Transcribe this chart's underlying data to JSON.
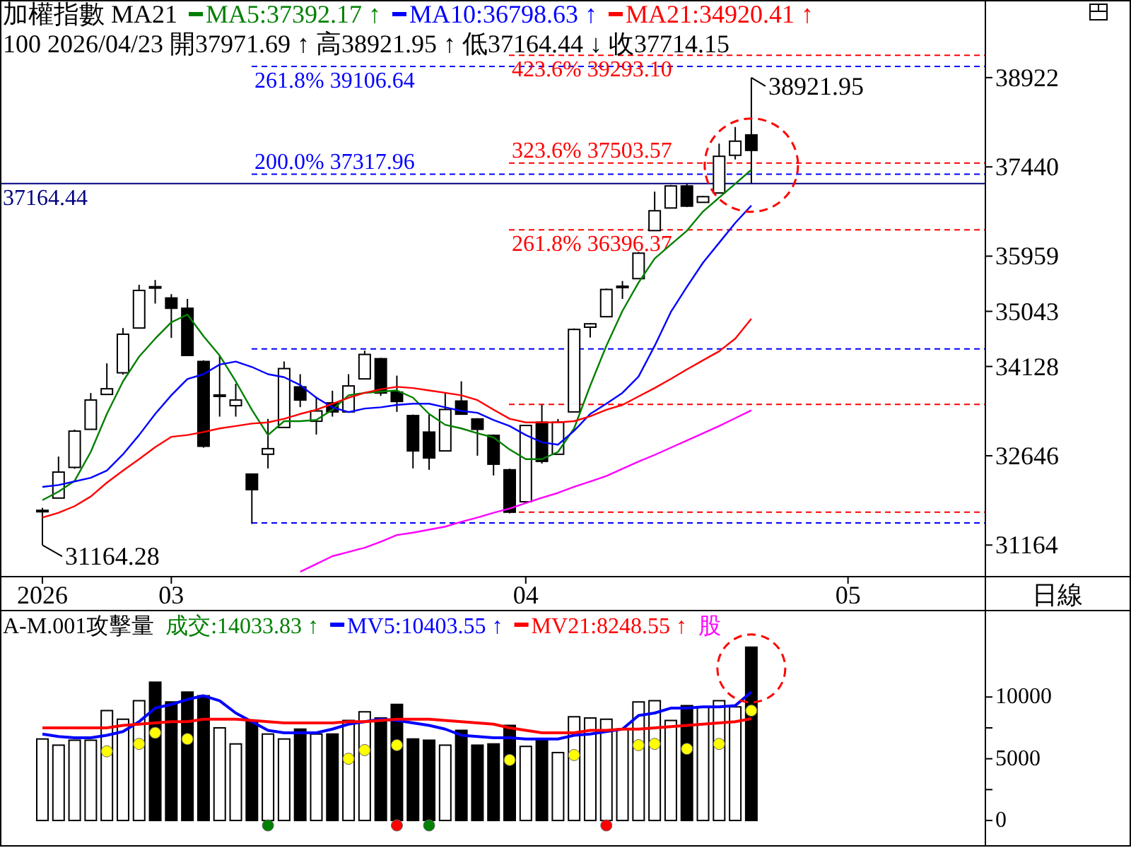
{
  "chart_data": [
    {
      "type": "candlestick",
      "title": "加權指數 MA21",
      "subtitle": "100 2026/04/23 開37971.69 ↑ 高38921.95 ↑ 低37164.44 ↓ 收37714.15",
      "legend": "top left",
      "categories": [
        "2026",
        null,
        null,
        null,
        null,
        null,
        null,
        null,
        "03",
        null,
        null,
        null,
        null,
        null,
        null,
        null,
        null,
        null,
        null,
        null,
        null,
        null,
        null,
        null,
        null,
        null,
        null,
        null,
        null,
        null,
        "04",
        null,
        null,
        null,
        null,
        null,
        null,
        null,
        null,
        null,
        null,
        null,
        null,
        null,
        null,
        null,
        null,
        null,
        null,
        null,
        "05",
        null,
        null,
        null,
        null,
        null,
        null,
        null,
        null
      ],
      "ohlc": [
        [
          31720,
          31780,
          31164.28,
          31740
        ],
        [
          31944,
          32633,
          31944,
          32375
        ],
        [
          32453,
          33080,
          32430,
          33055
        ],
        [
          33085,
          33688,
          33085,
          33571
        ],
        [
          33664,
          34180,
          33664,
          33758
        ],
        [
          34023,
          34766,
          33993,
          34663
        ],
        [
          34766,
          35483,
          34766,
          35390
        ],
        [
          35452,
          35563,
          35172,
          35440
        ],
        [
          35265,
          35329,
          34602,
          35094
        ],
        [
          35094,
          35249,
          34311,
          34311
        ],
        [
          34211,
          34230,
          32780,
          32804
        ],
        [
          33640,
          34311,
          33296,
          33655
        ],
        [
          33477,
          33842,
          33296,
          33571
        ],
        [
          32342,
          32342,
          31515,
          32084
        ],
        [
          32671,
          33257,
          32436,
          32764
        ],
        [
          33116,
          34211,
          33116,
          34093
        ],
        [
          33789,
          34000,
          33453,
          33571
        ],
        [
          33219,
          33625,
          32999,
          33390
        ],
        [
          33524,
          33725,
          33296,
          33374
        ],
        [
          33374,
          34000,
          33374,
          33805
        ],
        [
          33922,
          34391,
          33922,
          34328
        ],
        [
          34257,
          34270,
          33640,
          33688
        ],
        [
          33702,
          33976,
          33374,
          33547
        ],
        [
          33313,
          33330,
          32436,
          32727
        ],
        [
          33039,
          33336,
          32413,
          32610
        ],
        [
          32727,
          33702,
          32727,
          33414
        ],
        [
          33554,
          33882,
          33330,
          33336
        ],
        [
          33257,
          33270,
          32647,
          33085
        ],
        [
          32985,
          33000,
          32319,
          32506
        ],
        [
          32413,
          32430,
          31690,
          31710
        ],
        [
          31883,
          33160,
          31870,
          33149
        ],
        [
          33203,
          33491,
          32516,
          32553
        ],
        [
          32671,
          33257,
          32671,
          33203
        ],
        [
          33374,
          34760,
          33374,
          34743
        ],
        [
          34780,
          34850,
          34609,
          34836
        ],
        [
          34954,
          35420,
          34954,
          35406
        ],
        [
          35440,
          35547,
          35249,
          35460
        ],
        [
          35586,
          36030,
          35586,
          36008
        ],
        [
          36383,
          37030,
          36383,
          36712
        ],
        [
          36758,
          37140,
          36758,
          37124
        ],
        [
          37124,
          37164,
          36773,
          36789
        ],
        [
          36852,
          36960,
          36852,
          36946
        ],
        [
          37007,
          37827,
          37007,
          37616
        ],
        [
          37633,
          38102,
          37563,
          37867
        ],
        [
          37971.69,
          38921.95,
          37164.44,
          37714.15
        ],
        null,
        null,
        null,
        null,
        null,
        null,
        null,
        null,
        null,
        null,
        null,
        null,
        null,
        null
      ],
      "series": [
        {
          "name": "MA5:37392.17 ↑",
          "type": "line",
          "color": "#008000",
          "values": [
            31910,
            32050,
            32230,
            32710,
            33340,
            33880,
            34290,
            34590,
            34860,
            34990,
            34630,
            34310,
            33880,
            33410,
            32990,
            33220,
            33220,
            33240,
            33410,
            33650,
            33690,
            33710,
            33730,
            33610,
            33340,
            33160,
            33100,
            33020,
            32950,
            32750,
            32590,
            32590,
            32710,
            33100,
            33810,
            34470,
            35050,
            35520,
            35920,
            36150,
            36380,
            36700,
            36930,
            37160,
            37392.17,
            null,
            null,
            null,
            null,
            null,
            null,
            null,
            null,
            null,
            null,
            null,
            null,
            null,
            null
          ]
        },
        {
          "name": "MA10:36798.63 ↑",
          "type": "line",
          "color": "#0000ff",
          "values": [
            32130,
            32160,
            32220,
            32280,
            32400,
            32670,
            32990,
            33340,
            33650,
            33920,
            34000,
            34160,
            34210,
            34120,
            34000,
            33950,
            33820,
            33610,
            33450,
            33370,
            33430,
            33450,
            33490,
            33510,
            33510,
            33450,
            33390,
            33360,
            33240,
            33140,
            32990,
            32870,
            32830,
            33060,
            33340,
            33510,
            33690,
            33960,
            34470,
            35030,
            35450,
            35850,
            36180,
            36510,
            36798.63,
            null,
            null,
            null,
            null,
            null,
            null,
            null,
            null,
            null,
            null,
            null,
            null,
            null,
            null
          ]
        },
        {
          "name": "MA21:34920.41 ↑",
          "type": "line",
          "color": "#ff0000",
          "values": [
            31620,
            31700,
            31810,
            31970,
            32200,
            32400,
            32590,
            32790,
            32960,
            32990,
            33040,
            33100,
            33140,
            33180,
            33200,
            33260,
            33340,
            33410,
            33510,
            33610,
            33690,
            33750,
            33790,
            33770,
            33730,
            33690,
            33650,
            33570,
            33410,
            33260,
            33200,
            33200,
            33200,
            33220,
            33300,
            33410,
            33490,
            33630,
            33770,
            33920,
            34080,
            34230,
            34380,
            34590,
            34920.41,
            null,
            null,
            null,
            null,
            null,
            null,
            null,
            null,
            null,
            null,
            null,
            null,
            null,
            null
          ]
        },
        {
          "type": "line",
          "color": "#ff00ff",
          "values": [
            null,
            null,
            null,
            null,
            null,
            null,
            null,
            null,
            null,
            null,
            null,
            null,
            null,
            null,
            null,
            null,
            30720,
            30850,
            30980,
            31050,
            31120,
            31220,
            31330,
            31370,
            31420,
            31470,
            31550,
            31620,
            31700,
            31770,
            31860,
            31950,
            32030,
            32130,
            32220,
            32310,
            32430,
            32550,
            32660,
            32780,
            32900,
            33020,
            33140,
            33270,
            33400,
            null,
            null,
            null,
            null,
            null,
            null,
            null,
            null,
            null,
            null,
            null,
            null,
            null,
            null
          ]
        }
      ],
      "ylim": [
        30640,
        40210
      ],
      "yticks": [
        31164,
        32646,
        34128,
        35043,
        35959,
        37440,
        38922
      ],
      "ref_lines": [
        {
          "axis": "y",
          "value": 37164.44,
          "label": "37164.44",
          "color": "#000080",
          "line_style": "solid"
        },
        {
          "axis": "y",
          "value": 39106.64,
          "label": "261.8% 39106.64",
          "color": "#0000ff",
          "line_style": "dashed"
        },
        {
          "axis": "y",
          "value": 37317.96,
          "label": "200.0% 37317.96",
          "color": "#0000ff",
          "line_style": "dashed"
        },
        {
          "axis": "y",
          "value": 34420,
          "color": "#0000ff",
          "line_style": "dashed"
        },
        {
          "axis": "y",
          "value": 31530,
          "color": "#0000ff",
          "line_style": "dashed"
        },
        {
          "axis": "y",
          "value": 39293.1,
          "label": "423.6% 39293.10",
          "color": "#ff0000",
          "line_style": "dashed"
        },
        {
          "axis": "y",
          "value": 37503.57,
          "label": "323.6% 37503.57",
          "color": "#ff0000",
          "line_style": "dashed"
        },
        {
          "axis": "y",
          "value": 36396.37,
          "label": "261.8% 36396.37",
          "color": "#ff0000",
          "line_style": "dashed"
        },
        {
          "axis": "y",
          "value": 33500,
          "color": "#ff0000",
          "line_style": "dashed"
        },
        {
          "axis": "y",
          "value": 31710,
          "color": "#ff0000",
          "line_style": "dashed"
        }
      ],
      "annotations": [
        "38921.95",
        "31164.28",
        "日線"
      ]
    },
    {
      "type": "bar",
      "title": "A-M.001攻擊量",
      "legend": "top left",
      "categories": [
        null,
        null,
        null,
        null,
        null,
        null,
        null,
        null,
        null,
        null,
        null,
        null,
        null,
        null,
        null,
        null,
        null,
        null,
        null,
        null,
        null,
        null,
        null,
        null,
        null,
        null,
        null,
        null,
        null,
        null,
        null,
        null,
        null,
        null,
        null,
        null,
        null,
        null,
        null,
        null,
        null,
        null,
        null,
        null,
        null,
        null,
        null,
        null,
        null,
        null,
        null,
        null,
        null,
        null,
        null,
        null,
        null,
        null,
        null
      ],
      "series": [
        {
          "type": "bar",
          "colors": [
            "#ffffff",
            "#ffffff",
            "#ffffff",
            "#ffffff",
            "#ffffff",
            "#ffffff",
            "#ffffff",
            "#000000",
            "#000000",
            "#000000",
            "#000000",
            "#ffffff",
            "#ffffff",
            "#000000",
            "#ffffff",
            "#ffffff",
            "#000000",
            "#ffffff",
            "#000000",
            "#ffffff",
            "#ffffff",
            "#000000",
            "#000000",
            "#000000",
            "#000000",
            "#ffffff",
            "#000000",
            "#000000",
            "#000000",
            "#000000",
            "#ffffff",
            "#000000",
            "#ffffff",
            "#ffffff",
            "#ffffff",
            "#ffffff",
            "#ffffff",
            "#ffffff",
            "#ffffff",
            "#ffffff",
            "#000000",
            "#ffffff",
            "#ffffff",
            "#ffffff",
            "#000000",
            null,
            null,
            null,
            null,
            null,
            null,
            null,
            null,
            null,
            null,
            null,
            null,
            null,
            null
          ],
          "values": [
            6600,
            6100,
            6500,
            6500,
            8900,
            8200,
            9700,
            11200,
            9600,
            10400,
            10100,
            7500,
            6200,
            8100,
            7000,
            6600,
            7400,
            7000,
            7000,
            8100,
            8800,
            8300,
            9400,
            6600,
            6500,
            6100,
            7300,
            6100,
            6200,
            7700,
            6000,
            6500,
            5500,
            8400,
            8300,
            8200,
            7400,
            9600,
            9700,
            8100,
            9300,
            9200,
            9700,
            9200,
            14033.83,
            null,
            null,
            null,
            null,
            null,
            null,
            null,
            null,
            null,
            null,
            null,
            null,
            null,
            null
          ]
        },
        {
          "name": "MV5:10403.55 ↑",
          "type": "line",
          "color": "#0000ff",
          "values": [
            7000,
            6800,
            6700,
            6700,
            6900,
            7200,
            8000,
            9100,
            9400,
            9800,
            10100,
            9700,
            8700,
            8000,
            7300,
            7100,
            7100,
            7100,
            7400,
            7800,
            8000,
            8200,
            8100,
            7900,
            7700,
            7400,
            6900,
            6800,
            6700,
            6700,
            6600,
            6600,
            6600,
            6900,
            7000,
            7200,
            7400,
            8500,
            8700,
            9100,
            9100,
            9200,
            9200,
            9300,
            10403.55,
            null,
            null,
            null,
            null,
            null,
            null,
            null,
            null,
            null,
            null,
            null,
            null,
            null,
            null
          ]
        },
        {
          "name": "MV21:8248.55 ↑",
          "type": "line",
          "color": "#ff0000",
          "values": [
            7500,
            7500,
            7500,
            7500,
            7500,
            7700,
            7800,
            7900,
            8000,
            8000,
            8200,
            8200,
            8200,
            8100,
            8000,
            7900,
            7900,
            7900,
            7900,
            8000,
            8000,
            8100,
            8200,
            8200,
            8200,
            8100,
            8000,
            7900,
            7800,
            7500,
            7300,
            7100,
            7100,
            7100,
            7300,
            7300,
            7400,
            7400,
            7500,
            7600,
            7700,
            7800,
            7900,
            8000,
            8248.55,
            null,
            null,
            null,
            null,
            null,
            null,
            null,
            null,
            null,
            null,
            null,
            null,
            null,
            null
          ]
        },
        {
          "type": "scatter",
          "color": "#ffff00",
          "values": [
            null,
            null,
            null,
            null,
            5600,
            null,
            6200,
            7100,
            null,
            6600,
            null,
            null,
            null,
            null,
            null,
            null,
            null,
            null,
            null,
            5000,
            5700,
            null,
            6100,
            null,
            null,
            null,
            null,
            null,
            null,
            4900,
            null,
            null,
            null,
            5300,
            null,
            null,
            null,
            6100,
            6200,
            null,
            5800,
            null,
            6200,
            null,
            8900,
            null,
            null,
            null,
            null,
            null,
            null,
            null,
            null,
            null,
            null,
            null,
            null,
            null,
            null
          ]
        },
        {
          "type": "scatter",
          "colors": [
            null,
            null,
            null,
            null,
            null,
            null,
            null,
            null,
            null,
            null,
            null,
            null,
            null,
            null,
            "#008000",
            null,
            null,
            null,
            null,
            null,
            null,
            null,
            "#ff0000",
            null,
            "#008000",
            null,
            null,
            null,
            null,
            null,
            null,
            null,
            null,
            null,
            null,
            "#ff0000",
            null,
            null,
            null,
            null,
            null,
            null,
            null,
            null,
            null,
            null,
            null,
            null,
            null,
            null,
            null,
            null,
            null,
            null,
            null,
            null,
            null,
            null,
            null
          ],
          "values": [
            null,
            null,
            null,
            null,
            null,
            null,
            null,
            null,
            null,
            null,
            null,
            null,
            null,
            null,
            -400,
            null,
            null,
            null,
            null,
            null,
            null,
            null,
            -400,
            null,
            -400,
            null,
            null,
            null,
            null,
            null,
            null,
            null,
            null,
            null,
            null,
            -400,
            null,
            null,
            null,
            null,
            null,
            null,
            null,
            null,
            null,
            null,
            null,
            null,
            null,
            null,
            null,
            null,
            null,
            null,
            null,
            null,
            null,
            null,
            null
          ]
        }
      ],
      "ylim": [
        -2000,
        17000
      ],
      "yticks": [
        0,
        {
          "value": 2500,
          "label": null
        },
        5000,
        {
          "value": 7500,
          "label": null
        },
        10000
      ],
      "annotations": [
        "成交:14033.83 ↑",
        "股"
      ]
    }
  ]
}
